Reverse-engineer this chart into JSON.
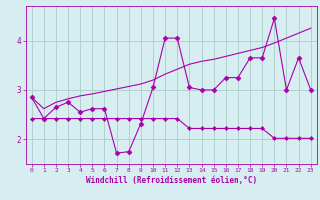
{
  "xlabel": "Windchill (Refroidissement éolien,°C)",
  "background_color": "#d6eef0",
  "grid_color": "#aacccc",
  "line_color": "#aa00aa",
  "xlim": [
    -0.5,
    23.5
  ],
  "ylim": [
    1.5,
    4.7
  ],
  "yticks": [
    2,
    3,
    4
  ],
  "xticks": [
    0,
    1,
    2,
    3,
    4,
    5,
    6,
    7,
    8,
    9,
    10,
    11,
    12,
    13,
    14,
    15,
    16,
    17,
    18,
    19,
    20,
    21,
    22,
    23
  ],
  "series": [
    {
      "x": [
        0,
        1,
        2,
        3,
        4,
        5,
        6,
        7,
        8,
        9,
        10,
        11,
        12,
        13,
        14,
        15,
        16,
        17,
        18,
        19,
        20,
        21,
        22,
        23
      ],
      "y": [
        2.85,
        2.42,
        2.65,
        2.75,
        2.55,
        2.62,
        2.62,
        1.72,
        1.75,
        2.32,
        3.05,
        4.05,
        4.05,
        3.05,
        3.0,
        3.0,
        3.25,
        3.25,
        3.65,
        3.65,
        4.45,
        3.0,
        3.65,
        3.0
      ],
      "marker": "D",
      "markersize": 2.5,
      "linewidth": 0.8
    },
    {
      "x": [
        0,
        1,
        2,
        3,
        4,
        5,
        6,
        7,
        8,
        9,
        10,
        11,
        12,
        13,
        14,
        15,
        16,
        17,
        18,
        19,
        20,
        21,
        22,
        23
      ],
      "y": [
        2.42,
        2.42,
        2.42,
        2.42,
        2.42,
        2.42,
        2.42,
        2.42,
        2.42,
        2.42,
        2.42,
        2.42,
        2.42,
        2.22,
        2.22,
        2.22,
        2.22,
        2.22,
        2.22,
        2.22,
        2.02,
        2.02,
        2.02,
        2.02
      ],
      "marker": "D",
      "markersize": 2.0,
      "linewidth": 0.8
    },
    {
      "x": [
        0,
        1,
        2,
        3,
        4,
        5,
        6,
        7,
        8,
        9,
        10,
        11,
        12,
        13,
        14,
        15,
        16,
        17,
        18,
        19,
        20,
        21,
        22,
        23
      ],
      "y": [
        2.85,
        2.62,
        2.75,
        2.82,
        2.88,
        2.92,
        2.97,
        3.02,
        3.07,
        3.12,
        3.2,
        3.32,
        3.42,
        3.52,
        3.58,
        3.62,
        3.68,
        3.74,
        3.8,
        3.86,
        3.95,
        4.05,
        4.15,
        4.25
      ],
      "marker": null,
      "markersize": 0,
      "linewidth": 0.8
    }
  ]
}
